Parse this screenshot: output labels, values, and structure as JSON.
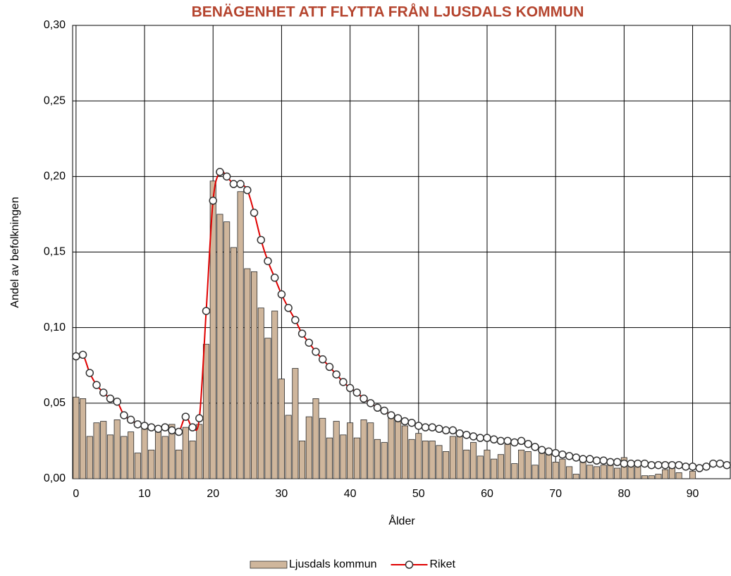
{
  "chart_data": {
    "type": "combo",
    "title": "BENÄGENHET ATT FLYTTA FRÅN LJUSDALS KOMMUN",
    "xlabel": "Ålder",
    "ylabel": "Andel av befolkningen",
    "x": [
      0,
      1,
      2,
      3,
      4,
      5,
      6,
      7,
      8,
      9,
      10,
      11,
      12,
      13,
      14,
      15,
      16,
      17,
      18,
      19,
      20,
      21,
      22,
      23,
      24,
      25,
      26,
      27,
      28,
      29,
      30,
      31,
      32,
      33,
      34,
      35,
      36,
      37,
      38,
      39,
      40,
      41,
      42,
      43,
      44,
      45,
      46,
      47,
      48,
      49,
      50,
      51,
      52,
      53,
      54,
      55,
      56,
      57,
      58,
      59,
      60,
      61,
      62,
      63,
      64,
      65,
      66,
      67,
      68,
      69,
      70,
      71,
      72,
      73,
      74,
      75,
      76,
      77,
      78,
      79,
      80,
      81,
      82,
      83,
      84,
      85,
      86,
      87,
      88,
      89,
      90,
      91,
      92,
      93,
      94,
      95
    ],
    "series": [
      {
        "name": "Ljusdals kommun",
        "kind": "bar",
        "color": "#cfb69c",
        "edge": "#2b2b2b",
        "values": [
          0.054,
          0.053,
          0.028,
          0.037,
          0.038,
          0.029,
          0.039,
          0.028,
          0.031,
          0.017,
          0.033,
          0.019,
          0.031,
          0.028,
          0.036,
          0.019,
          0.034,
          0.025,
          0.036,
          0.089,
          0.197,
          0.175,
          0.17,
          0.153,
          0.19,
          0.139,
          0.137,
          0.113,
          0.093,
          0.111,
          0.066,
          0.042,
          0.073,
          0.025,
          0.041,
          0.053,
          0.04,
          0.027,
          0.038,
          0.029,
          0.037,
          0.027,
          0.039,
          0.037,
          0.026,
          0.024,
          0.041,
          0.039,
          0.035,
          0.026,
          0.03,
          0.025,
          0.025,
          0.022,
          0.018,
          0.028,
          0.03,
          0.019,
          0.024,
          0.015,
          0.019,
          0.013,
          0.016,
          0.023,
          0.01,
          0.019,
          0.018,
          0.009,
          0.017,
          0.016,
          0.011,
          0.013,
          0.008,
          0.003,
          0.011,
          0.009,
          0.008,
          0.009,
          0.009,
          0.007,
          0.014,
          0.01,
          0.008,
          0.002,
          0.002,
          0.003,
          0.006,
          0.007,
          0.004,
          0,
          0.005,
          null,
          null,
          null,
          null,
          null
        ]
      },
      {
        "name": "Riket",
        "kind": "line",
        "color": "#e00000",
        "marker_fill": "#ffffff",
        "marker_edge": "#333333",
        "values": [
          0.081,
          0.082,
          0.07,
          0.062,
          0.057,
          0.053,
          0.051,
          0.042,
          0.039,
          0.036,
          0.035,
          0.034,
          0.033,
          0.034,
          0.032,
          0.031,
          0.041,
          0.034,
          0.04,
          0.111,
          0.184,
          0.203,
          0.2,
          0.195,
          0.195,
          0.191,
          0.176,
          0.158,
          0.144,
          0.133,
          0.122,
          0.113,
          0.105,
          0.096,
          0.09,
          0.084,
          0.079,
          0.074,
          0.069,
          0.064,
          0.06,
          0.057,
          0.053,
          0.05,
          0.047,
          0.045,
          0.042,
          0.04,
          0.038,
          0.037,
          0.035,
          0.034,
          0.034,
          0.033,
          0.032,
          0.032,
          0.03,
          0.029,
          0.028,
          0.027,
          0.027,
          0.026,
          0.025,
          0.025,
          0.024,
          0.025,
          0.023,
          0.021,
          0.019,
          0.018,
          0.017,
          0.016,
          0.015,
          0.014,
          0.013,
          0.013,
          0.012,
          0.012,
          0.011,
          0.011,
          0.01,
          0.01,
          0.01,
          0.01,
          0.009,
          0.009,
          0.009,
          0.009,
          0.009,
          0.008,
          0.008,
          0.007,
          0.008,
          0.01,
          0.01,
          0.009
        ]
      }
    ],
    "xlim": [
      -0.5,
      95.5
    ],
    "xticks": [
      0,
      10,
      20,
      30,
      40,
      50,
      60,
      70,
      80,
      90
    ],
    "ylim": [
      0,
      0.3
    ],
    "yticks": [
      {
        "value": 0,
        "label": "0,00"
      },
      {
        "value": 0.05,
        "label": "0,05"
      },
      {
        "value": 0.1,
        "label": "0,10"
      },
      {
        "value": 0.15,
        "label": "0,15"
      },
      {
        "value": 0.2,
        "label": "0,20"
      },
      {
        "value": 0.25,
        "label": "0,25"
      },
      {
        "value": 0.3,
        "label": "0,30"
      }
    ],
    "grid": true,
    "legend": "bottom"
  }
}
